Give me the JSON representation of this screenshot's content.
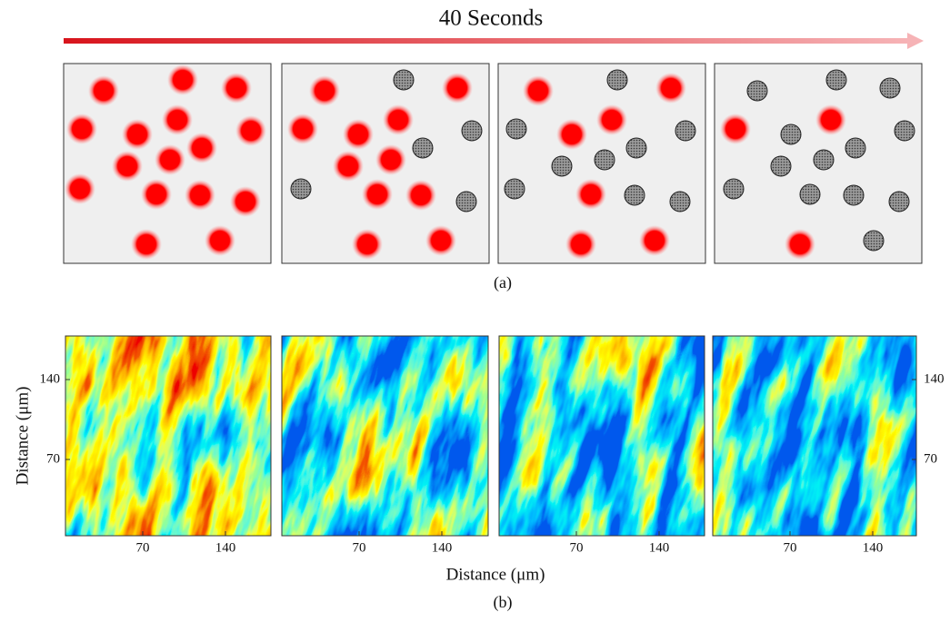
{
  "figure": {
    "arrow_label": "40 Seconds",
    "panel_a_caption": "(a)",
    "panel_b_caption": "(b)",
    "x_axis_label": "Distance (μm)",
    "y_axis_label": "Distance (μm)",
    "maps": [
      {
        "xticks": [
          "70",
          "140"
        ],
        "yticks": [
          "140",
          "70"
        ]
      },
      {
        "xticks": [
          "70",
          "140"
        ]
      },
      {
        "xticks": [
          "70",
          "140"
        ]
      },
      {
        "xticks": [
          "70",
          "140"
        ],
        "yticks": [
          "140",
          "70"
        ]
      }
    ]
  }
}
